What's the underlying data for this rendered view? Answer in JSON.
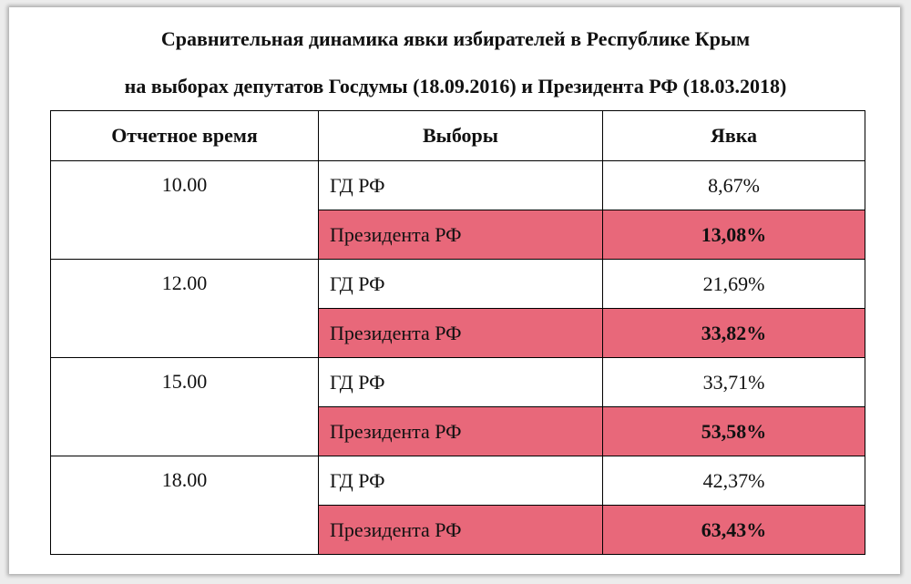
{
  "title_line1": "Сравнительная динамика явки избирателей в Республике Крым",
  "title_line2": "на выборах депутатов Госдумы (18.09.2016) и Президента РФ (18.03.2018)",
  "columns": [
    "Отчетное время",
    "Выборы",
    "Явка"
  ],
  "highlight_color": "#e8687a",
  "rows": [
    {
      "time": "10.00",
      "gd_label": "ГД РФ",
      "gd_value": "8,67%",
      "pres_label": "Президента РФ",
      "pres_value": "13,08%"
    },
    {
      "time": "12.00",
      "gd_label": "ГД РФ",
      "gd_value": "21,69%",
      "pres_label": "Президента РФ",
      "pres_value": "33,82%"
    },
    {
      "time": "15.00",
      "gd_label": "ГД РФ",
      "gd_value": "33,71%",
      "pres_label": "Президента РФ",
      "pres_value": "53,58%"
    },
    {
      "time": "18.00",
      "gd_label": "ГД РФ",
      "gd_value": "42,37%",
      "pres_label": "Президента РФ",
      "pres_value": "63,43%"
    }
  ]
}
